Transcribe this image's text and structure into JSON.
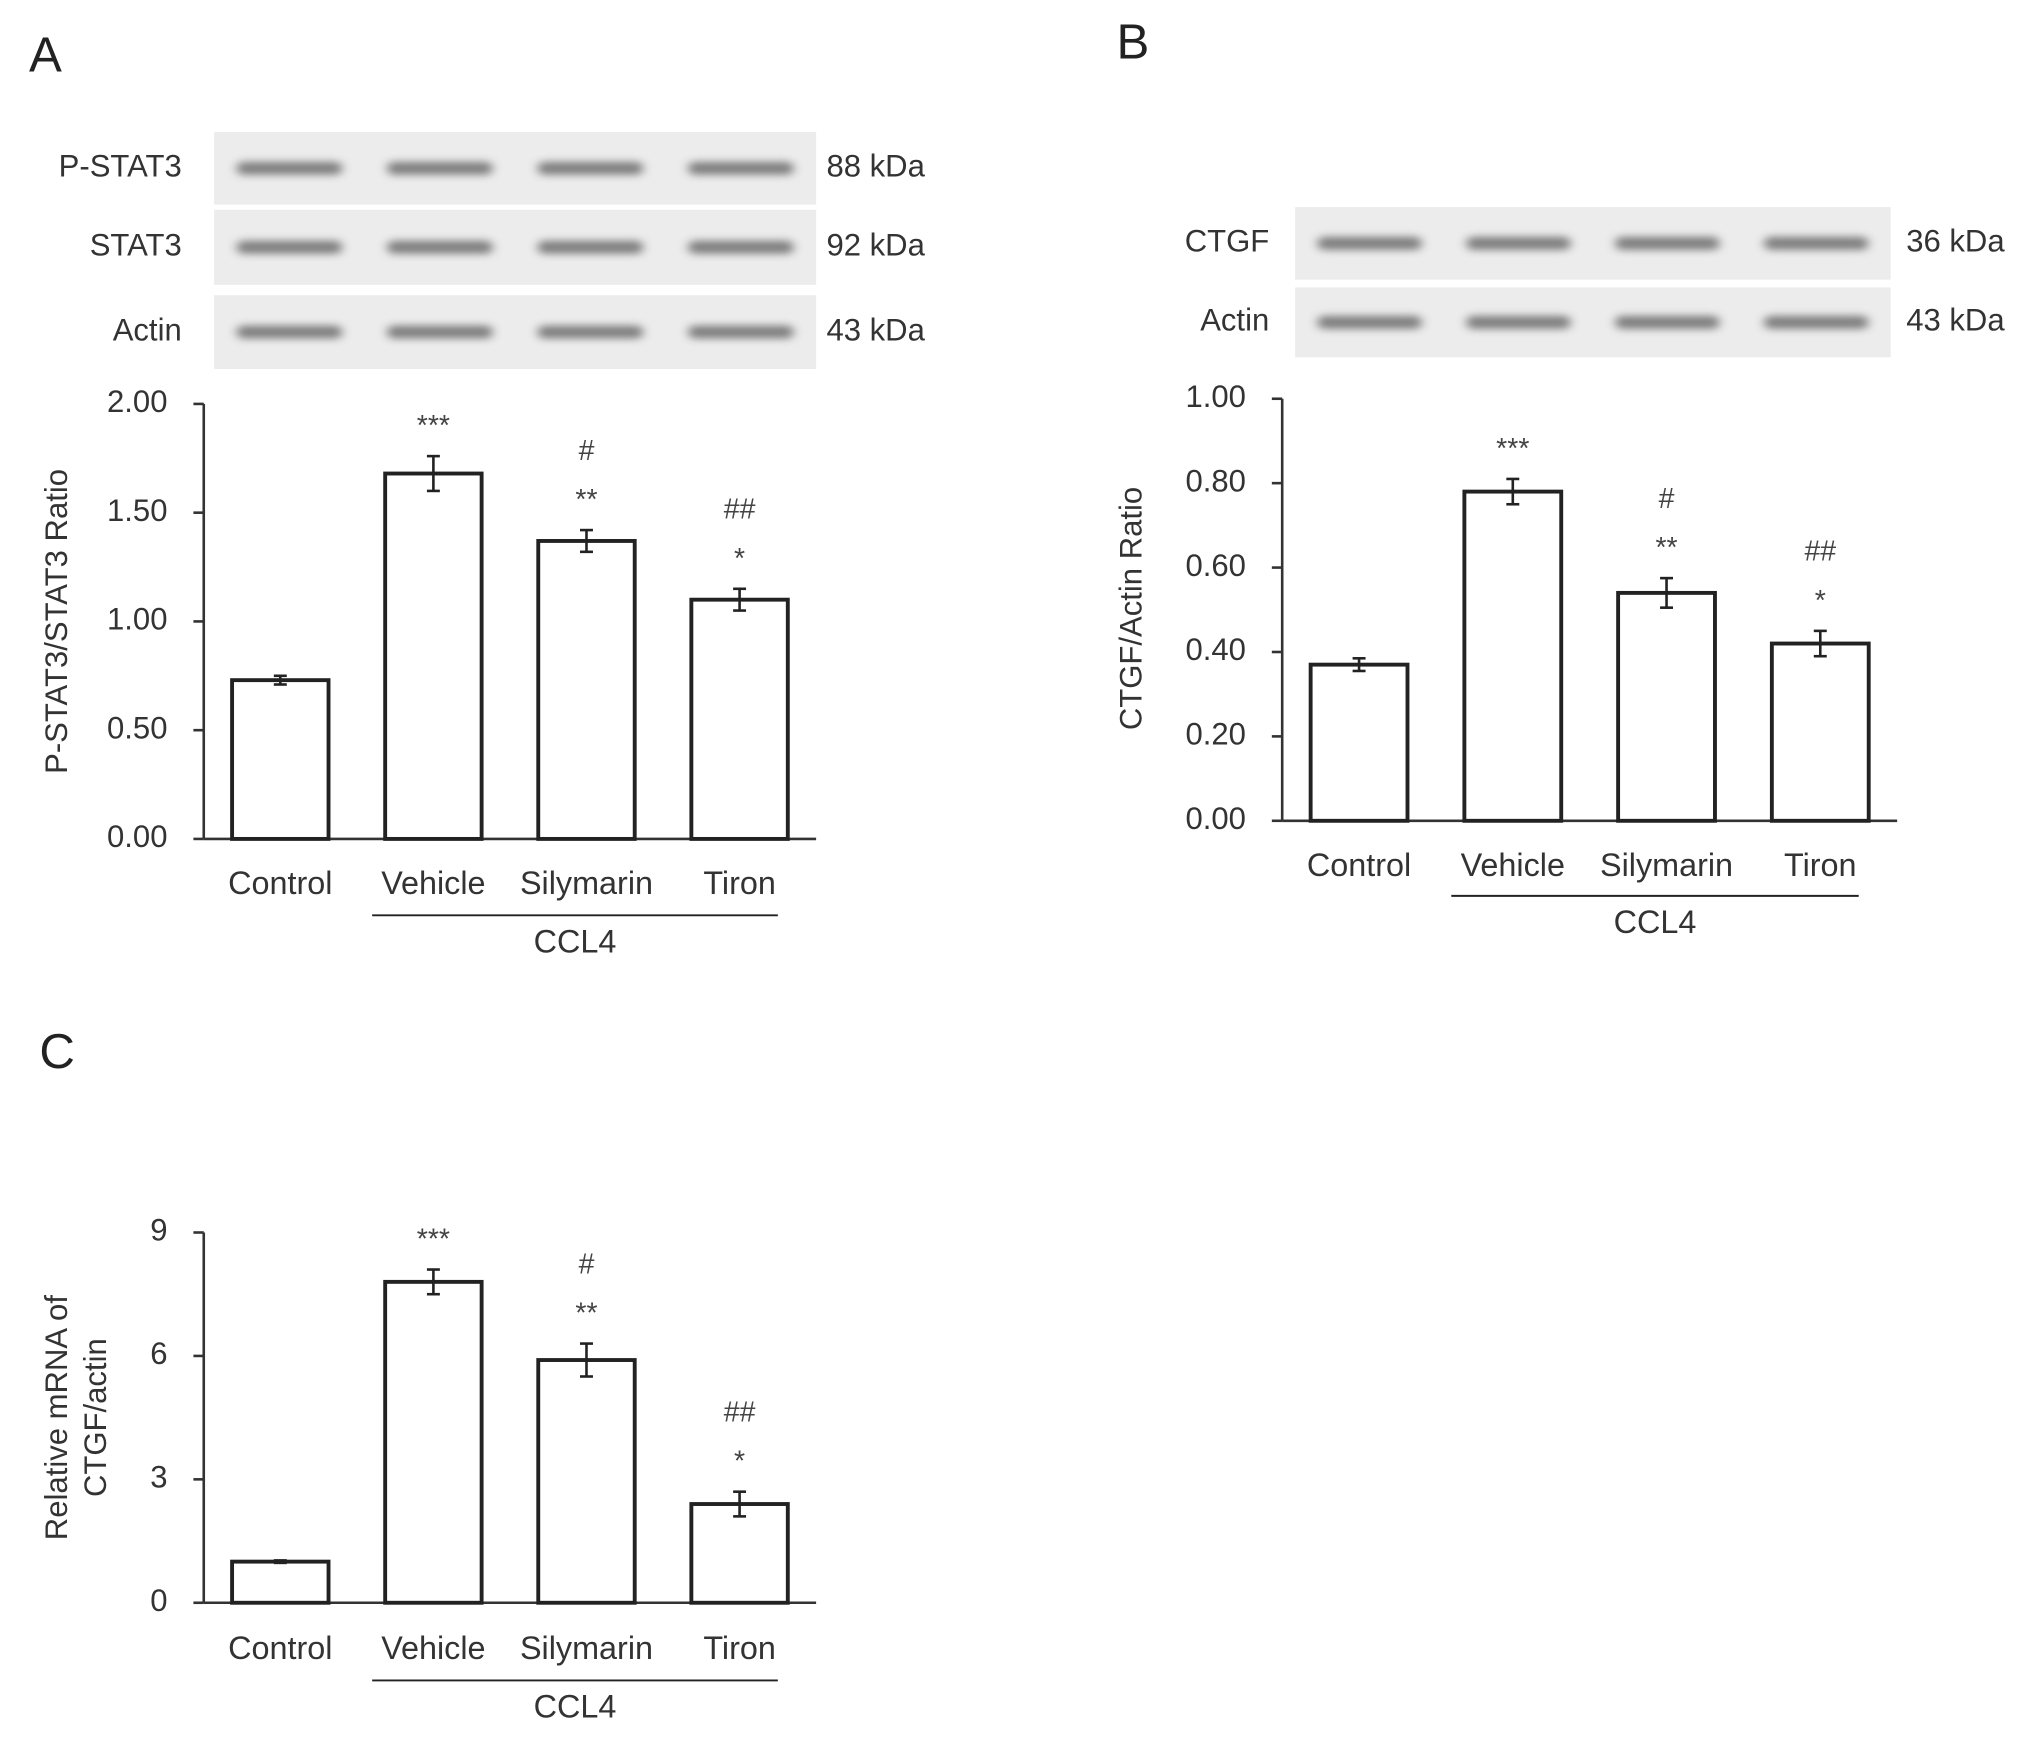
{
  "chart_data": [
    {
      "type": "bar",
      "panel": "A",
      "ylabel": [
        "P-STAT3/STAT3 Ratio"
      ],
      "blots": [
        {
          "label": "P-STAT3",
          "size": "88 kDa"
        },
        {
          "label": "STAT3",
          "size": "92 kDa"
        },
        {
          "label": "Actin",
          "size": "43 kDa"
        }
      ],
      "categories": [
        "Control",
        "Vehicle",
        "Silymarin",
        "Tiron"
      ],
      "group_label": "CCL4",
      "values": [
        0.73,
        1.68,
        1.37,
        1.1
      ],
      "errors": [
        0.02,
        0.08,
        0.05,
        0.05
      ],
      "annotations": [
        null,
        [
          "***"
        ],
        [
          "#",
          "**"
        ],
        [
          "##",
          "*"
        ]
      ],
      "color": "#ffffff",
      "ylim": [
        0,
        2
      ],
      "yticks": [
        {
          "value": 0,
          "label": "0.00"
        },
        {
          "value": 0.5,
          "label": "0.50"
        },
        {
          "value": 1,
          "label": "1.00"
        },
        {
          "value": 1.5,
          "label": "1.50"
        },
        {
          "value": 2,
          "label": "2.00"
        }
      ]
    },
    {
      "type": "bar",
      "panel": "B",
      "ylabel": [
        "CTGF/Actin Ratio"
      ],
      "blots": [
        {
          "label": "CTGF",
          "size": "36 kDa"
        },
        {
          "label": "Actin",
          "size": "43 kDa"
        }
      ],
      "categories": [
        "Control",
        "Vehicle",
        "Silymarin",
        "Tiron"
      ],
      "group_label": "CCL4",
      "values": [
        0.37,
        0.78,
        0.54,
        0.42
      ],
      "errors": [
        0.015,
        0.03,
        0.035,
        0.03
      ],
      "annotations": [
        null,
        [
          "***"
        ],
        [
          "#",
          "**"
        ],
        [
          "##",
          "*"
        ]
      ],
      "color": "#ffffff",
      "ylim": [
        0,
        1
      ],
      "yticks": [
        {
          "value": 0,
          "label": "0.00"
        },
        {
          "value": 0.2,
          "label": "0.20"
        },
        {
          "value": 0.4,
          "label": "0.40"
        },
        {
          "value": 0.6,
          "label": "0.60"
        },
        {
          "value": 0.8,
          "label": "0.80"
        },
        {
          "value": 1,
          "label": "1.00"
        }
      ]
    },
    {
      "type": "bar",
      "panel": "C",
      "ylabel": [
        "Relative mRNA of",
        "CTGF/actin"
      ],
      "categories": [
        "Control",
        "Vehicle",
        "Silymarin",
        "Tiron"
      ],
      "group_label": "CCL4",
      "values": [
        1.0,
        7.8,
        5.9,
        2.4
      ],
      "errors": [
        0.03,
        0.3,
        0.4,
        0.3
      ],
      "annotations": [
        null,
        [
          "***"
        ],
        [
          "#",
          "**"
        ],
        [
          "##",
          "*"
        ]
      ],
      "color": "#ffffff",
      "ylim": [
        0,
        9
      ],
      "yticks": [
        0,
        3,
        6,
        9
      ]
    }
  ]
}
